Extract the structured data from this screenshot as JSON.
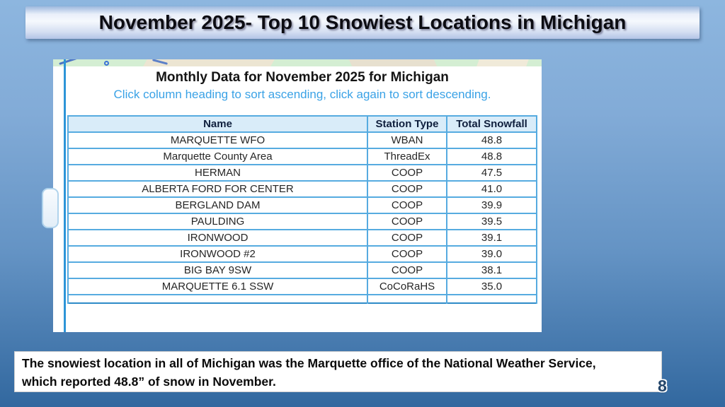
{
  "slide": {
    "title": "November 2025- Top 10 Snowiest Locations in Michigan",
    "page_number": "8",
    "caption": {
      "line1": "The snowiest location in all of Michigan was the Marquette office of the National Weather Service,",
      "line2": "which reported 48.8” of snow in November."
    }
  },
  "screenshot": {
    "heading": "Monthly Data for November 2025 for Michigan",
    "subheading": "Click column heading to sort ascending, click again to sort descending.",
    "table": {
      "columns": [
        "Name",
        "Station Type",
        "Total Snowfall"
      ],
      "rows": [
        [
          "MARQUETTE WFO",
          "WBAN",
          "48.8"
        ],
        [
          "Marquette County Area",
          "ThreadEx",
          "48.8"
        ],
        [
          "HERMAN",
          "COOP",
          "47.5"
        ],
        [
          "ALBERTA FORD FOR CENTER",
          "COOP",
          "41.0"
        ],
        [
          "BERGLAND DAM",
          "COOP",
          "39.9"
        ],
        [
          "PAULDING",
          "COOP",
          "39.5"
        ],
        [
          "IRONWOOD",
          "COOP",
          "39.1"
        ],
        [
          "IRONWOOD #2",
          "COOP",
          "39.0"
        ],
        [
          "BIG BAY 9SW",
          "COOP",
          "38.1"
        ],
        [
          "MARQUETTE 6.1 SSW",
          "CoCoRaHS",
          "35.0"
        ]
      ]
    }
  },
  "colors": {
    "slide_bg_top": "#8db6df",
    "slide_bg_bottom": "#32689f",
    "title_bar_light": "#f5f8fd",
    "title_bar_dark": "#9db8de",
    "table_border": "#56abe0",
    "table_outer_border": "#2e8bc8",
    "table_header_bg": "#d9ecf9",
    "subheading_blue": "#3aa2e6",
    "caption_bg": "#ffffff",
    "page_number_color": "#24466b"
  }
}
